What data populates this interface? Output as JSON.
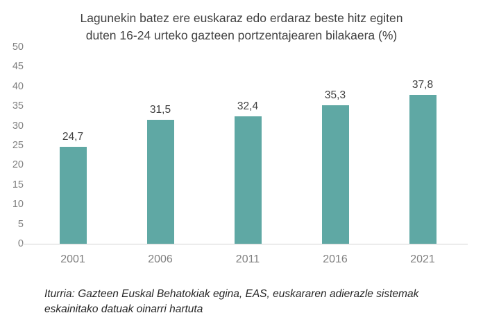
{
  "title_lines": [
    "Lagunekin batez ere euskaraz edo erdaraz beste hitz egiten",
    "duten 16-24 urteko gazteen portzentajearen bilakaera (%)"
  ],
  "source_note": "Iturria: Gazteen Euskal Behatokiak egina, EAS, euskararen adierazle sistemak eskainitako datuak oinarri hartuta",
  "colors": {
    "bar": "#5fa8a4",
    "axis_line": "#d2d2d2",
    "title_text": "#404040",
    "tick_text": "#7f7f7f",
    "value_label_text": "#404040",
    "source_text": "#262626"
  },
  "chart_data": {
    "type": "bar",
    "title": "Lagunekin batez ere euskaraz edo erdaraz beste hitz egiten duten 16-24 urteko gazteen portzentajearen bilakaera (%)",
    "categories": [
      "2001",
      "2006",
      "2011",
      "2016",
      "2021"
    ],
    "values": [
      24.7,
      31.5,
      32.4,
      35.3,
      37.8
    ],
    "value_labels": [
      "24,7",
      "31,5",
      "32,4",
      "35,3",
      "37,8"
    ],
    "xlabel": "",
    "ylabel": "",
    "ylim": [
      0,
      50
    ],
    "yticks": [
      0,
      5,
      10,
      15,
      20,
      25,
      30,
      35,
      40,
      45,
      50
    ],
    "grid": false,
    "legend": false
  }
}
